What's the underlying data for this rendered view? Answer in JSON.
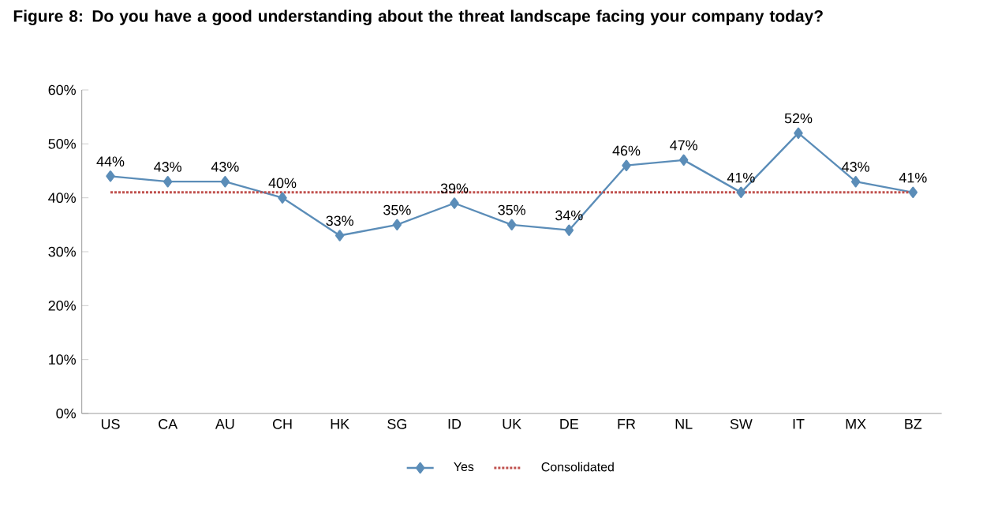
{
  "chart_data": {
    "type": "line",
    "title": "Figure 8: Do you have a good understanding about the threat landscape facing your company today?",
    "categories": [
      "US",
      "CA",
      "AU",
      "CH",
      "HK",
      "SG",
      "ID",
      "UK",
      "DE",
      "FR",
      "NL",
      "SW",
      "IT",
      "MX",
      "BZ"
    ],
    "ylim": [
      0,
      60
    ],
    "yticks": [
      {
        "value": 0,
        "label": "0%"
      },
      {
        "value": 10,
        "label": "10%"
      },
      {
        "value": 20,
        "label": "20%"
      },
      {
        "value": 30,
        "label": "30%"
      },
      {
        "value": 40,
        "label": "40%"
      },
      {
        "value": 50,
        "label": "50%"
      },
      {
        "value": 60,
        "label": "60%"
      }
    ],
    "legend": "bottom",
    "series": [
      {
        "name": "Yes",
        "color": "#5b8db8",
        "marker": "diamond",
        "line_style": "solid",
        "values": [
          44,
          43,
          43,
          40,
          33,
          35,
          39,
          35,
          34,
          46,
          47,
          41,
          52,
          43,
          41
        ],
        "value_labels": [
          "44%",
          "43%",
          "43%",
          "40%",
          "33%",
          "35%",
          "39%",
          "35%",
          "34%",
          "46%",
          "47%",
          "41%",
          "52%",
          "43%",
          "41%"
        ]
      },
      {
        "name": "Consolidated",
        "color": "#c0504d",
        "marker": "none",
        "line_style": "dotted",
        "values": [
          41,
          41,
          41,
          41,
          41,
          41,
          41,
          41,
          41,
          41,
          41,
          41,
          41,
          41,
          41
        ]
      }
    ]
  }
}
